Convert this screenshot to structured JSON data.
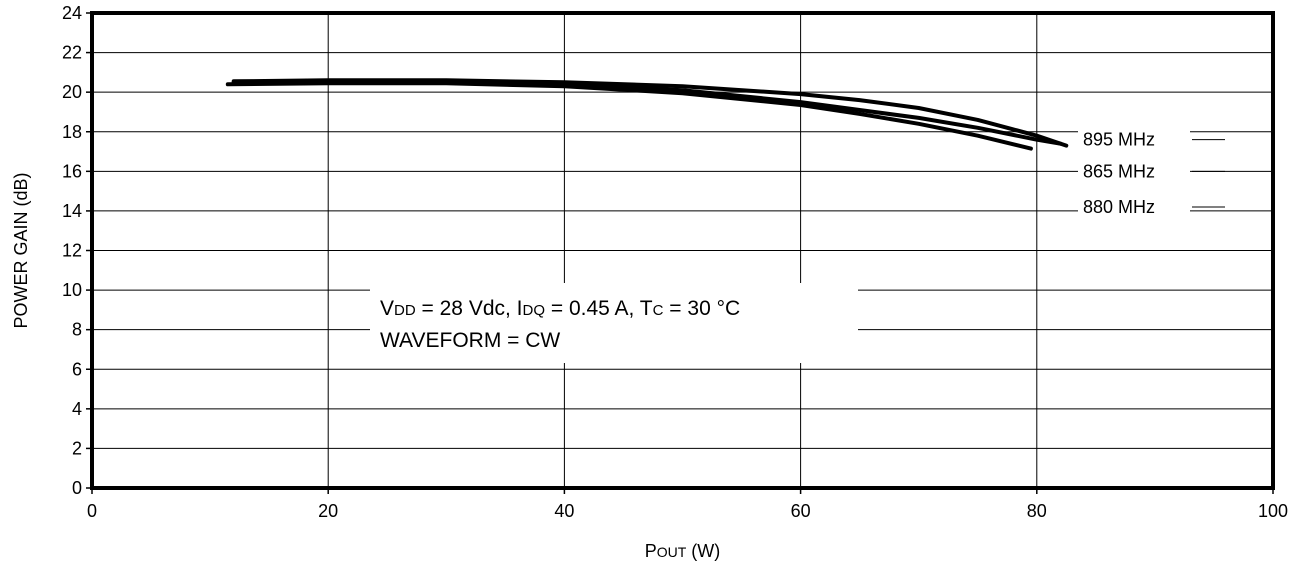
{
  "chart_data": {
    "type": "line",
    "xlabel": {
      "main": "P",
      "sub": "OUT",
      "unit": " (W)"
    },
    "ylabel": "POWER GAIN (dB)",
    "xlim": [
      0,
      100
    ],
    "ylim": [
      0,
      24
    ],
    "xticks": [
      "0",
      "20",
      "40",
      "60",
      "80",
      "100"
    ],
    "yticks": [
      "0",
      "2",
      "4",
      "6",
      "8",
      "10",
      "12",
      "14",
      "16",
      "18",
      "20",
      "22",
      "24"
    ],
    "grid": true,
    "annotation": {
      "line1": [
        {
          "t": "V",
          "small": false
        },
        {
          "t": "DD",
          "small": true
        },
        {
          "t": " = 28 Vdc, I",
          "small": false
        },
        {
          "t": "DQ",
          "small": true
        },
        {
          "t": " = 0.45 A, T",
          "small": false
        },
        {
          "t": "C",
          "small": true
        },
        {
          "t": " = 30 °C",
          "small": false
        }
      ],
      "line2": "WAVEFORM = CW"
    },
    "series": [
      {
        "name": "895 MHz",
        "x": [
          12,
          20,
          30,
          40,
          50,
          60,
          65,
          70,
          75,
          80,
          82.5
        ],
        "y": [
          20.55,
          20.6,
          20.6,
          20.5,
          20.3,
          19.9,
          19.6,
          19.2,
          18.6,
          17.8,
          17.3
        ]
      },
      {
        "name": "865 MHz",
        "x": [
          11.5,
          20,
          30,
          40,
          50,
          60,
          65,
          70,
          75,
          79.5
        ],
        "y": [
          20.4,
          20.45,
          20.45,
          20.3,
          19.95,
          19.35,
          18.9,
          18.4,
          17.8,
          17.15
        ]
      },
      {
        "name": "880 MHz",
        "x": [
          12,
          20,
          30,
          40,
          50,
          60,
          65,
          70,
          75,
          80,
          82
        ],
        "y": [
          20.5,
          20.55,
          20.55,
          20.4,
          20.1,
          19.5,
          19.1,
          18.7,
          18.2,
          17.6,
          17.4
        ]
      }
    ]
  }
}
